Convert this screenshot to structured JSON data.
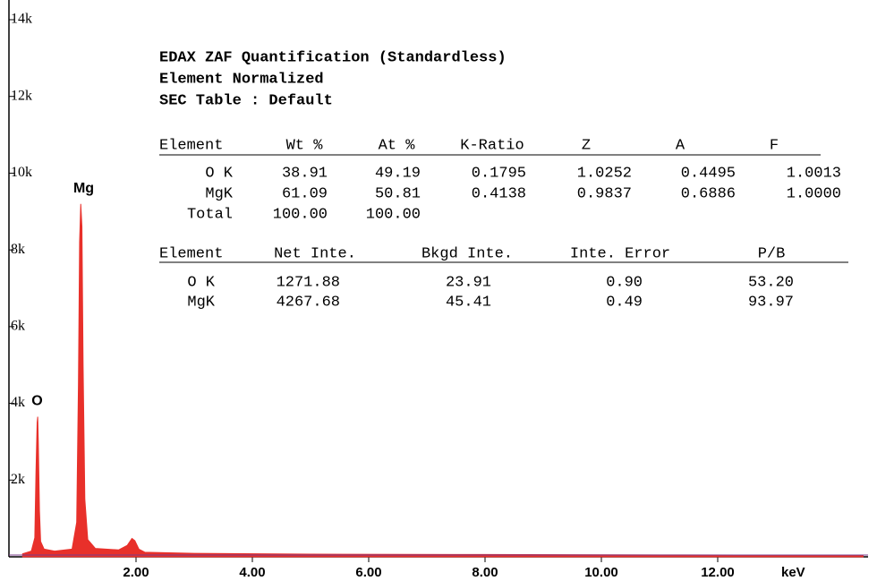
{
  "chart_data": {
    "type": "area",
    "x_label": "keV",
    "xlim": [
      0,
      14.6
    ],
    "ylim": [
      0,
      14000
    ],
    "xticks": [
      {
        "value": 2,
        "label": "2.00"
      },
      {
        "value": 4,
        "label": "4.00"
      },
      {
        "value": 6,
        "label": "6.00"
      },
      {
        "value": 8,
        "label": "8.00"
      },
      {
        "value": 10,
        "label": "10.00"
      },
      {
        "value": 12,
        "label": "12.00"
      }
    ],
    "yticks": [
      {
        "value": 2000,
        "label": "2k"
      },
      {
        "value": 4000,
        "label": "4k"
      },
      {
        "value": 6000,
        "label": "6k"
      },
      {
        "value": 8000,
        "label": "8k"
      },
      {
        "value": 10000,
        "label": "10k"
      },
      {
        "value": 12000,
        "label": "12k"
      },
      {
        "value": 14000,
        "label": "14k"
      }
    ],
    "color": "#e8302a",
    "x": [
      0.05,
      0.2,
      0.26,
      0.28,
      0.3,
      0.31,
      0.32,
      0.34,
      0.36,
      0.42,
      0.6,
      0.9,
      0.98,
      1.01,
      1.03,
      1.05,
      1.07,
      1.09,
      1.12,
      1.17,
      1.3,
      1.7,
      1.85,
      1.93,
      1.98,
      2.05,
      2.15,
      3,
      5,
      8,
      11,
      14.5
    ],
    "values": [
      80,
      150,
      500,
      2200,
      3500,
      3650,
      3000,
      1200,
      400,
      200,
      150,
      200,
      900,
      4500,
      8200,
      9200,
      8600,
      5000,
      1500,
      450,
      220,
      180,
      300,
      480,
      420,
      200,
      120,
      90,
      70,
      60,
      50,
      40
    ],
    "annotations": [
      {
        "text": "O",
        "x": 0.3,
        "y": 4050
      },
      {
        "text": "Mg",
        "x": 1.1,
        "y": 9600
      }
    ]
  },
  "report": {
    "title_lines": [
      "EDAX ZAF Quantification (Standardless)",
      "Element Normalized",
      "SEC Table : Default"
    ],
    "table1": {
      "header": [
        "Element",
        "Wt %",
        "At %",
        "K-Ratio",
        "Z",
        "A",
        "F"
      ],
      "rows": [
        [
          "O K",
          "38.91",
          "49.19",
          "0.1795",
          "1.0252",
          "0.4495",
          "1.0013"
        ],
        [
          "MgK",
          "61.09",
          "50.81",
          "0.4138",
          "0.9837",
          "0.6886",
          "1.0000"
        ],
        [
          "Total",
          "100.00",
          "100.00"
        ]
      ]
    },
    "table2": {
      "header": [
        "Element",
        "Net Inte.",
        "Bkgd Inte.",
        "Inte. Error",
        "P/B"
      ],
      "rows": [
        [
          "O K",
          "1271.88",
          "23.91",
          "0.90",
          "53.20"
        ],
        [
          "MgK",
          "4267.68",
          "45.41",
          "0.49",
          "93.97"
        ]
      ]
    }
  }
}
